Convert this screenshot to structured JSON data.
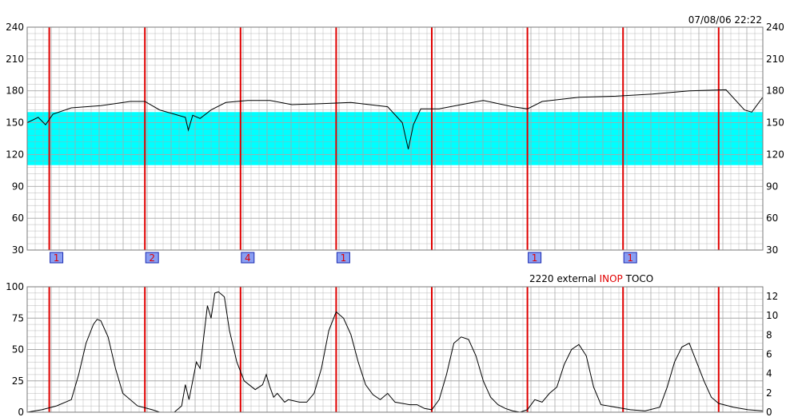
{
  "timestamp": "07/08/06 22:22",
  "colors": {
    "grid": "#a8a8a8",
    "normal_band": "#00ffff",
    "marker_line": "#e00000",
    "trace": "#000000",
    "event_box_fill": "#8a9ef2",
    "event_box_border": "#1a2ab0",
    "event_text": "#e00000",
    "status_highlight": "#e00000"
  },
  "upper_panel": {
    "left_ticks": [
      "240",
      "210",
      "180",
      "150",
      "120",
      "90",
      "60",
      "30"
    ],
    "right_ticks": [
      "240",
      "210",
      "180",
      "150",
      "120",
      "90",
      "60",
      "30"
    ],
    "event_markers": [
      "1",
      "2",
      "4",
      "1",
      "1",
      "1"
    ]
  },
  "lower_panel": {
    "status": {
      "code": "2220",
      "mode": "external",
      "flag": "INOP",
      "channel": "TOCO"
    },
    "left_ticks": [
      "100",
      "75",
      "50",
      "25",
      "0"
    ],
    "right_ticks": [
      "12",
      "10",
      "8",
      "6",
      "4",
      "2",
      "0"
    ]
  },
  "chart_data": [
    {
      "type": "line",
      "name": "upper",
      "x_range": [
        0,
        100
      ],
      "ylim": [
        30,
        240
      ],
      "normal_band": [
        110,
        160
      ],
      "event_lines_x": [
        3,
        16,
        29,
        42,
        55,
        68,
        81,
        94
      ],
      "event_markers": [
        {
          "x": 3,
          "label": "1"
        },
        {
          "x": 16,
          "label": "2"
        },
        {
          "x": 29,
          "label": "4"
        },
        {
          "x": 42,
          "label": "1"
        },
        {
          "x": 68,
          "label": "1"
        },
        {
          "x": 81,
          "label": "1"
        }
      ],
      "x": [
        0,
        1.5,
        2.5,
        3.5,
        6,
        10,
        14,
        16,
        18,
        20,
        21.5,
        21.9,
        22.5,
        23.5,
        25,
        27,
        30,
        33,
        36,
        40,
        44,
        49,
        51,
        51.8,
        52.5,
        53.5,
        56,
        62,
        66,
        68,
        70,
        75,
        80,
        85,
        90,
        95,
        97.5,
        98.5,
        100
      ],
      "values": [
        150,
        155,
        148,
        158,
        164,
        166,
        170,
        170,
        162,
        158,
        155,
        143,
        157,
        154,
        162,
        169,
        171,
        171,
        167,
        168,
        169,
        165,
        150,
        125,
        148,
        163,
        163,
        171,
        165,
        163,
        170,
        174,
        175,
        177,
        180,
        181,
        162,
        160,
        174
      ]
    },
    {
      "type": "line",
      "name": "lower",
      "x_range": [
        0,
        100
      ],
      "ylim": [
        0,
        100
      ],
      "y2lim": [
        0,
        13
      ],
      "event_lines_x": [
        3,
        16,
        29,
        42,
        55,
        68,
        81,
        94
      ],
      "x": [
        0,
        2,
        4,
        6,
        7,
        8,
        9,
        9.5,
        10,
        11,
        12,
        13,
        15,
        17,
        18,
        19,
        20,
        21,
        21.5,
        22,
        23,
        23.5,
        24,
        24.5,
        25,
        25.5,
        26,
        26.8,
        27.5,
        28.5,
        29.5,
        31,
        32,
        32.5,
        33,
        33.5,
        34,
        35,
        35.5,
        37,
        38,
        39,
        40,
        41,
        42,
        43,
        44,
        45,
        46,
        47,
        48,
        49,
        50,
        52,
        53,
        54,
        55,
        56,
        57,
        58,
        59,
        60,
        61,
        62,
        63,
        64,
        65,
        66,
        67,
        68,
        69,
        70,
        71,
        72,
        73,
        74,
        75,
        76,
        77,
        78,
        80,
        82,
        84,
        86,
        87,
        88,
        89,
        90,
        91,
        92,
        93,
        94,
        96,
        98,
        100
      ],
      "values": [
        0,
        2,
        5,
        10,
        30,
        55,
        70,
        74,
        73,
        60,
        35,
        15,
        5,
        2,
        0,
        0,
        0,
        5,
        22,
        10,
        40,
        35,
        60,
        85,
        75,
        95,
        96,
        92,
        65,
        40,
        25,
        18,
        22,
        30,
        20,
        12,
        15,
        8,
        10,
        8,
        8,
        15,
        35,
        65,
        80,
        75,
        62,
        40,
        22,
        14,
        10,
        15,
        8,
        6,
        6,
        3,
        2,
        10,
        30,
        55,
        60,
        58,
        45,
        25,
        12,
        6,
        3,
        1,
        0,
        2,
        10,
        8,
        15,
        20,
        38,
        50,
        54,
        45,
        20,
        6,
        4,
        2,
        1,
        4,
        20,
        40,
        52,
        55,
        40,
        25,
        12,
        7,
        4,
        2,
        1
      ]
    }
  ]
}
